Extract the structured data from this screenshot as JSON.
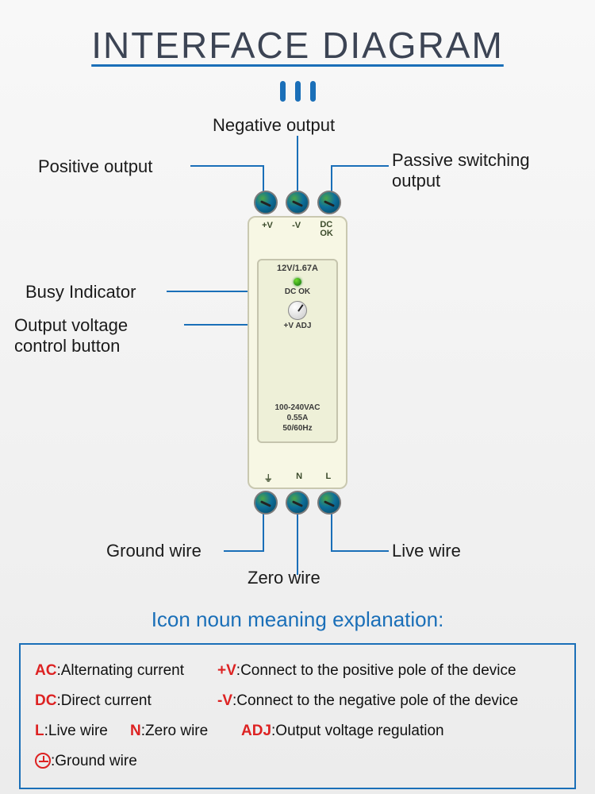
{
  "title": "INTERFACE DIAGRAM",
  "colors": {
    "accent": "#1a6fb8",
    "text": "#1b1b1b",
    "key": "#d22222",
    "device_body": "#f7f7e4",
    "device_border": "#c9c8b0"
  },
  "labels": {
    "positive_output": "Positive output",
    "negative_output": "Negative output",
    "passive_switching": "Passive switching\noutput",
    "busy_indicator": "Busy Indicator",
    "voltage_control": "Output voltage\ncontrol button",
    "ground_wire": "Ground wire",
    "zero_wire": "Zero wire",
    "live_wire": "Live wire"
  },
  "device": {
    "top_terminals": [
      "+V",
      "-V",
      "DC\nOK"
    ],
    "rating": "12V/1.67A",
    "dc_ok": "DC OK",
    "adj": "+V ADJ",
    "ac_spec": [
      "100-240VAC",
      "0.55A",
      "50/60Hz"
    ],
    "bottom_terminals": [
      "⏚",
      "N",
      "L"
    ]
  },
  "legend": {
    "title": "Icon noun meaning explanation:",
    "items": [
      {
        "key": "AC",
        "val": "Alternating current"
      },
      {
        "key": "+V",
        "val": "Connect to the positive pole of the device"
      },
      {
        "key": "DC",
        "val": "Direct current"
      },
      {
        "key": "-V",
        "val": "Connect to the negative pole of the device"
      },
      {
        "key": "L",
        "val": "Live wire"
      },
      {
        "key": "N",
        "val": "Zero wire"
      },
      {
        "key": "ADJ",
        "val": "Output voltage regulation"
      },
      {
        "key": "⏚",
        "val": "Ground wire",
        "ground": true
      }
    ]
  },
  "lead_lines": {
    "stroke": "#1a6fb8",
    "stroke_width": 2,
    "paths": [
      "M332 120 L332 70 L240 70",
      "M375 120 L375 32",
      "M418 120 L418 70 L490 70",
      "M348 228 L210 228",
      "M350 270 L232 270",
      "M332 490 L332 555 L282 555",
      "M375 490 L375 585",
      "M418 490 L418 555 L490 555"
    ]
  }
}
